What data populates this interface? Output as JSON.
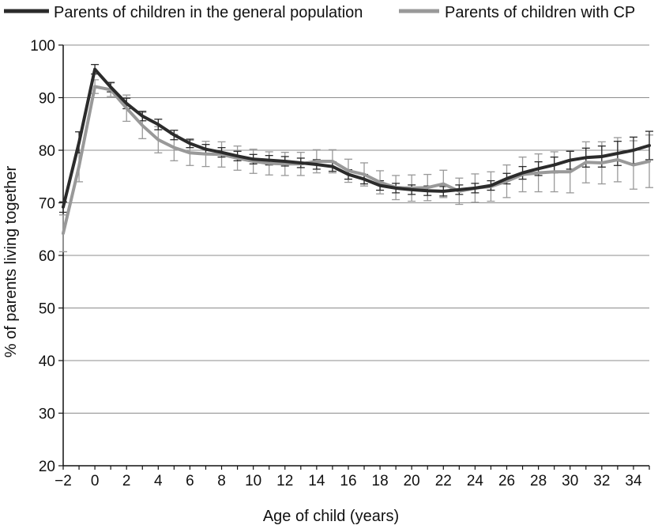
{
  "chart_data": {
    "type": "line",
    "title": "",
    "xlabel": "Age of child (years)",
    "ylabel": "% of parents living together",
    "xlim": [
      -2,
      35
    ],
    "ylim": [
      20,
      100
    ],
    "x_ticks": [
      -2,
      0,
      2,
      4,
      6,
      8,
      10,
      12,
      14,
      16,
      18,
      20,
      22,
      24,
      26,
      28,
      30,
      32,
      34
    ],
    "x_tick_labels": [
      "−2",
      "0",
      "2",
      "4",
      "6",
      "8",
      "10",
      "12",
      "14",
      "16",
      "18",
      "20",
      "22",
      "24",
      "26",
      "28",
      "30",
      "32",
      "34"
    ],
    "y_ticks": [
      20,
      30,
      40,
      50,
      60,
      70,
      80,
      90,
      100
    ],
    "y_tick_labels": [
      "20",
      "30",
      "40",
      "50",
      "60",
      "70",
      "80",
      "90",
      "100"
    ],
    "grid": "horizontal",
    "legend_position": "top",
    "colors": {
      "general": "#2b2b2b",
      "cp": "#999999",
      "grid": "#8c8c8c",
      "axis": "#111111"
    },
    "x": [
      -2,
      -1,
      0,
      1,
      2,
      3,
      4,
      5,
      6,
      7,
      8,
      9,
      10,
      11,
      12,
      13,
      14,
      15,
      16,
      17,
      18,
      19,
      20,
      21,
      22,
      23,
      24,
      25,
      26,
      27,
      28,
      29,
      30,
      31,
      32,
      33,
      34,
      35
    ],
    "series": [
      {
        "name": "Parents of children in the general population",
        "values": [
          69.2,
          81.5,
          95.4,
          92.0,
          88.9,
          86.5,
          84.9,
          82.9,
          81.3,
          80.2,
          79.6,
          78.9,
          78.3,
          78.1,
          77.9,
          77.6,
          77.3,
          76.9,
          75.4,
          74.5,
          73.3,
          72.8,
          72.5,
          72.3,
          72.2,
          72.5,
          72.8,
          73.3,
          74.6,
          75.7,
          76.5,
          77.2,
          78.1,
          78.6,
          78.8,
          79.4,
          80.0,
          80.9
        ],
        "error": [
          1.0,
          2.0,
          0.9,
          0.9,
          1.0,
          0.9,
          1.0,
          0.9,
          0.8,
          0.9,
          0.9,
          0.9,
          0.9,
          0.9,
          0.9,
          0.9,
          0.9,
          0.9,
          0.9,
          0.9,
          0.9,
          0.9,
          0.9,
          0.9,
          0.9,
          0.9,
          0.9,
          0.9,
          1.0,
          1.2,
          1.3,
          1.5,
          1.7,
          1.8,
          2.0,
          2.3,
          2.5,
          2.7
        ]
      },
      {
        "name": "Parents of children with CP",
        "values": [
          64.2,
          77.0,
          92.1,
          91.5,
          88.0,
          84.7,
          82.0,
          80.5,
          79.5,
          79.3,
          79.2,
          78.5,
          77.9,
          77.5,
          77.4,
          77.4,
          77.9,
          77.9,
          76.1,
          75.4,
          73.9,
          72.9,
          72.8,
          72.9,
          73.6,
          72.2,
          72.8,
          73.1,
          74.1,
          75.4,
          75.7,
          75.9,
          75.9,
          77.7,
          77.6,
          78.2,
          77.2,
          77.9
        ],
        "error": [
          3.5,
          3.0,
          1.3,
          1.3,
          2.5,
          2.5,
          2.5,
          2.5,
          2.4,
          2.4,
          2.4,
          2.3,
          2.3,
          2.2,
          2.2,
          2.2,
          2.2,
          2.2,
          2.2,
          2.2,
          2.2,
          2.3,
          2.5,
          2.5,
          2.6,
          2.5,
          2.7,
          2.8,
          3.1,
          3.3,
          3.6,
          3.8,
          4.0,
          3.9,
          4.0,
          4.2,
          4.6,
          5.0
        ]
      }
    ]
  }
}
